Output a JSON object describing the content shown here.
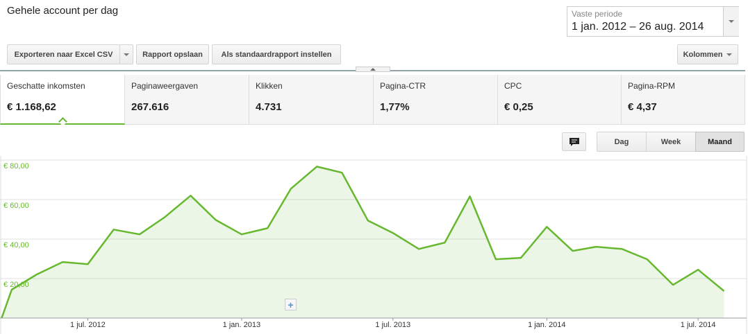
{
  "header": {
    "title": "Gehele account per dag"
  },
  "date_range": {
    "label": "Vaste periode",
    "value": "1 jan. 2012 – 26 aug. 2014"
  },
  "toolbar": {
    "buttons": [
      "Exporteren naar Excel CSV",
      "Rapport opslaan",
      "Als standaardrapport instellen"
    ],
    "columns": "Kolommen"
  },
  "metrics": [
    {
      "label": "Geschatte inkomsten",
      "value": "€ 1.168,62"
    },
    {
      "label": "Paginaweergaven",
      "value": "267.616"
    },
    {
      "label": "Klikken",
      "value": "4.731"
    },
    {
      "label": "Pagina-CTR",
      "value": "1,77%"
    },
    {
      "label": "CPC",
      "value": "€ 0,25"
    },
    {
      "label": "Pagina-RPM",
      "value": "€ 4,37"
    }
  ],
  "view_buttons": [
    "Dag",
    "Week",
    "Maand"
  ],
  "chart_data": {
    "type": "area",
    "x": [
      "2012-03-20",
      "2012-04-01",
      "2012-05-01",
      "2012-06-01",
      "2012-07-01",
      "2012-08-01",
      "2012-09-01",
      "2012-10-01",
      "2012-11-01",
      "2012-12-01",
      "2013-01-01",
      "2013-02-01",
      "2013-03-01",
      "2013-04-01",
      "2013-05-01",
      "2013-06-01",
      "2013-07-01",
      "2013-08-01",
      "2013-09-01",
      "2013-10-01",
      "2013-11-01",
      "2013-12-01",
      "2014-01-01",
      "2014-02-01",
      "2014-03-01",
      "2014-04-01",
      "2014-05-01",
      "2014-06-01",
      "2014-07-01",
      "2014-08-01"
    ],
    "values": [
      0,
      14.4,
      22.1,
      28.4,
      27.3,
      44.8,
      42.4,
      51.1,
      62.0,
      49.7,
      42.4,
      45.5,
      65.5,
      76.7,
      73.6,
      49.4,
      43.1,
      35.0,
      38.2,
      61.6,
      29.8,
      30.5,
      46.2,
      34.0,
      36.1,
      35.0,
      29.8,
      16.8,
      24.5,
      13.7
    ],
    "color": "#66b82e",
    "xlim": [
      "2012-03-18",
      "2014-08-28"
    ],
    "xticks": [
      {
        "value": "2012-07-01",
        "label": "1 jul. 2012"
      },
      {
        "value": "2013-01-01",
        "label": "1 jan. 2013"
      },
      {
        "value": "2013-07-01",
        "label": "1 jul. 2013"
      },
      {
        "value": "2014-01-01",
        "label": "1 jan. 2014"
      },
      {
        "value": "2014-07-01",
        "label": "1 jul. 2014"
      }
    ],
    "ylim": [
      0,
      80
    ],
    "yticks": [
      {
        "value": 20,
        "label": "€ 20,00"
      },
      {
        "value": 40,
        "label": "€ 40,00"
      },
      {
        "value": 60,
        "label": "€ 60,00"
      },
      {
        "value": 80,
        "label": "€ 80,00"
      }
    ],
    "grid": true
  }
}
